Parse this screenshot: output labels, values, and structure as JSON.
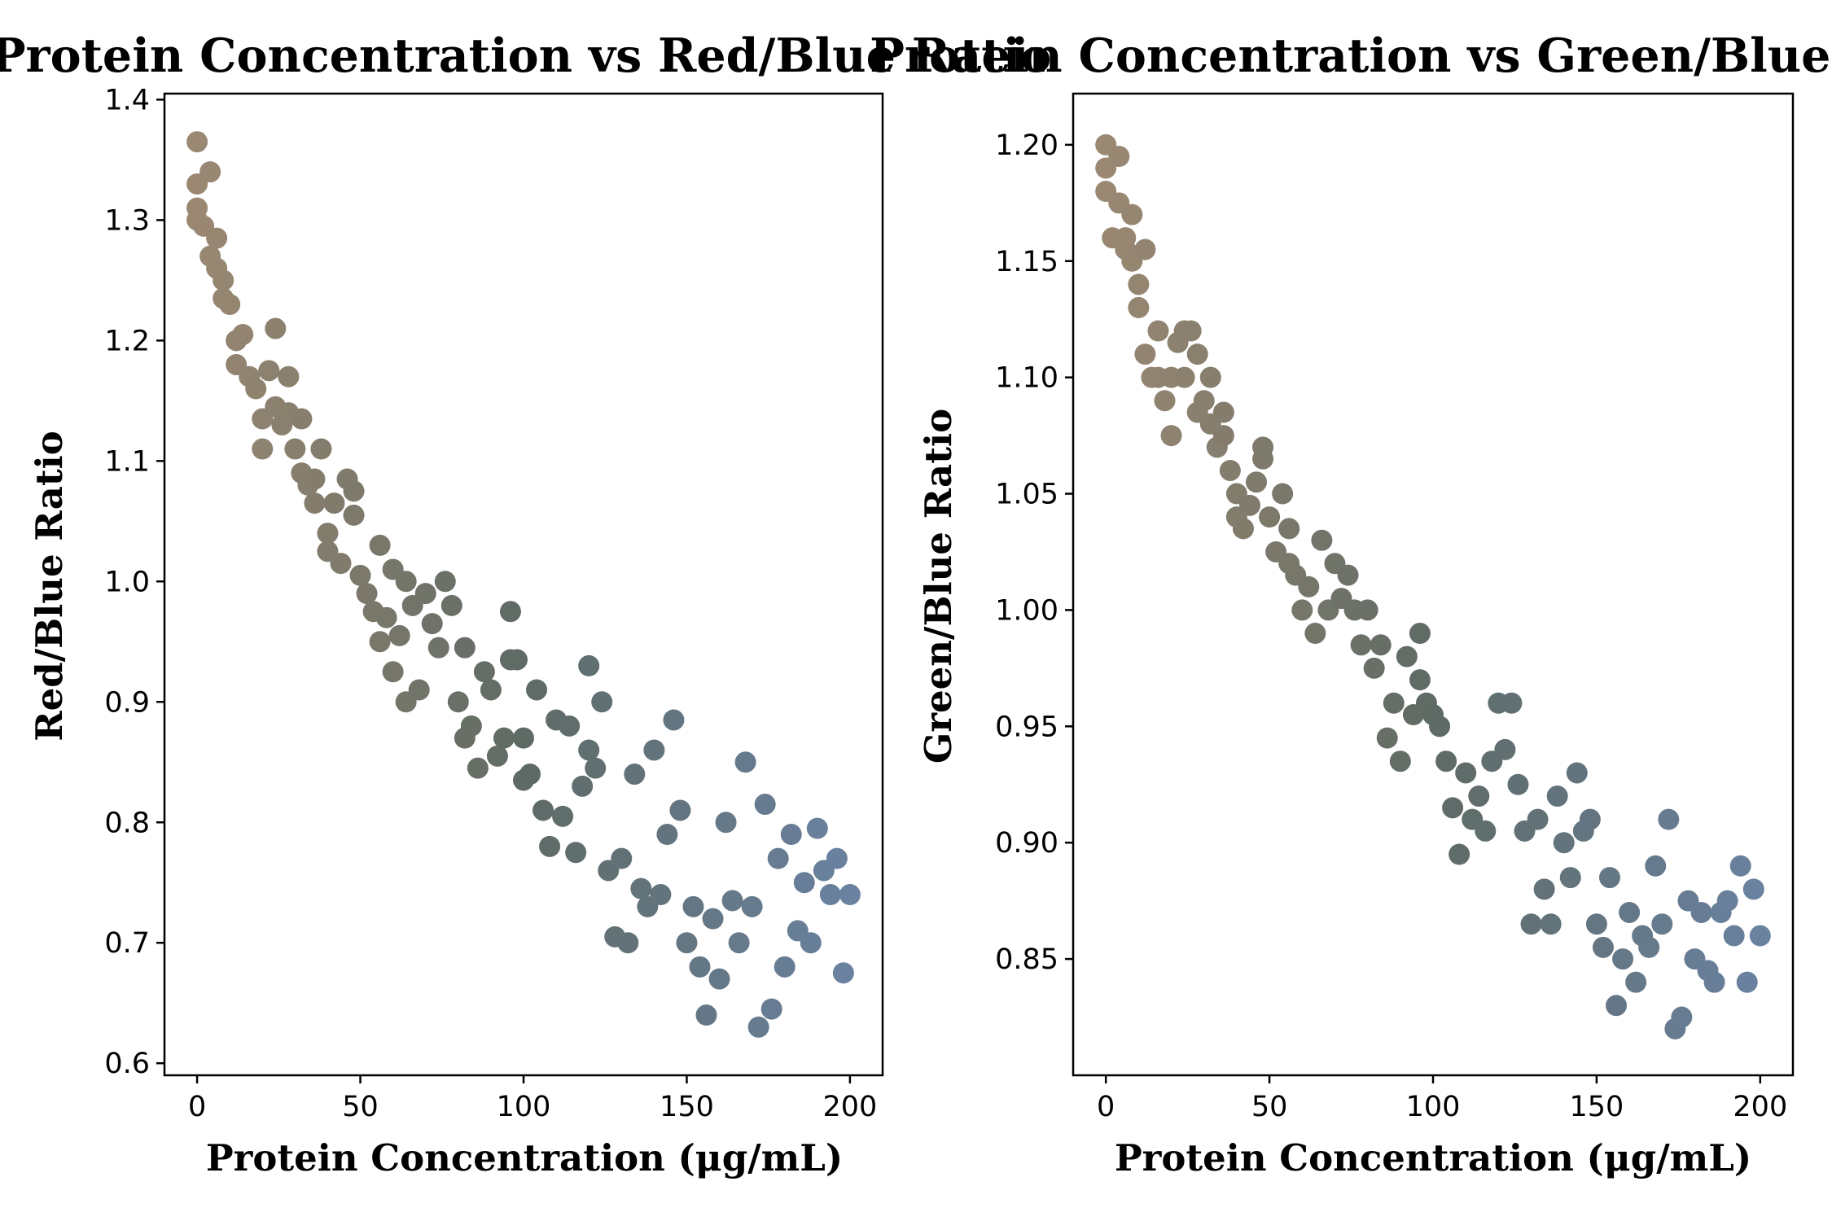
{
  "chart_data": [
    {
      "type": "scatter",
      "title": "Protein Concentration vs Red/Blue Ratio",
      "xlabel": "Protein Concentration (μg/mL)",
      "ylabel": "Red/Blue Ratio",
      "xlim": [
        -10,
        210
      ],
      "ylim": [
        0.59,
        1.405
      ],
      "xticks": [
        0,
        50,
        100,
        150,
        200
      ],
      "xtick_labels": [
        "0",
        "50",
        "100",
        "150",
        "200"
      ],
      "yticks": [
        0.6,
        0.7,
        0.8,
        0.9,
        1.0,
        1.1,
        1.2,
        1.3,
        1.4
      ],
      "ytick_labels": [
        "0.6",
        "0.7",
        "0.8",
        "0.9",
        "1.0",
        "1.1",
        "1.2",
        "1.3",
        "1.4"
      ],
      "grid": false,
      "marker_colors": {
        "low": "#a08b74",
        "mid": "#5e6a64",
        "high": "#6b84a6"
      },
      "series": [
        {
          "x": [
            0,
            0,
            0,
            0,
            2,
            4,
            4,
            6,
            6,
            8,
            8,
            10,
            12,
            12,
            14,
            16,
            18,
            20,
            20,
            22,
            24,
            24,
            26,
            28,
            28,
            30,
            32,
            32,
            34,
            36,
            36,
            38,
            40,
            40,
            42,
            44,
            46,
            48,
            48,
            50,
            52,
            54,
            56,
            56,
            58,
            60,
            60,
            62,
            64,
            64,
            66,
            68,
            70,
            72,
            74,
            76,
            78,
            80,
            82,
            82,
            84,
            86,
            88,
            90,
            92,
            94,
            96,
            96,
            98,
            100,
            100,
            102,
            104,
            106,
            108,
            110,
            112,
            114,
            116,
            118,
            120,
            120,
            122,
            124,
            126,
            128,
            130,
            132,
            134,
            136,
            138,
            140,
            142,
            144,
            146,
            148,
            150,
            152,
            154,
            156,
            158,
            160,
            162,
            164,
            166,
            168,
            170,
            172,
            174,
            176,
            178,
            180,
            182,
            184,
            186,
            188,
            190,
            192,
            194,
            196,
            198,
            200
          ],
          "y": [
            1.365,
            1.33,
            1.31,
            1.3,
            1.295,
            1.34,
            1.27,
            1.26,
            1.285,
            1.25,
            1.235,
            1.23,
            1.2,
            1.18,
            1.205,
            1.17,
            1.16,
            1.135,
            1.11,
            1.175,
            1.21,
            1.145,
            1.13,
            1.17,
            1.14,
            1.11,
            1.135,
            1.09,
            1.08,
            1.085,
            1.065,
            1.11,
            1.04,
            1.025,
            1.065,
            1.015,
            1.085,
            1.075,
            1.055,
            1.005,
            0.99,
            0.975,
            1.03,
            0.95,
            0.97,
            1.01,
            0.925,
            0.955,
            0.9,
            1.0,
            0.98,
            0.91,
            0.99,
            0.965,
            0.945,
            1.0,
            0.98,
            0.9,
            0.87,
            0.945,
            0.88,
            0.845,
            0.925,
            0.91,
            0.855,
            0.87,
            0.975,
            0.935,
            0.935,
            0.835,
            0.87,
            0.84,
            0.91,
            0.81,
            0.78,
            0.885,
            0.805,
            0.88,
            0.775,
            0.83,
            0.93,
            0.86,
            0.845,
            0.9,
            0.76,
            0.705,
            0.77,
            0.7,
            0.84,
            0.745,
            0.73,
            0.86,
            0.74,
            0.79,
            0.885,
            0.81,
            0.7,
            0.73,
            0.68,
            0.64,
            0.72,
            0.67,
            0.8,
            0.735,
            0.7,
            0.85,
            0.73,
            0.63,
            0.815,
            0.645,
            0.77,
            0.68,
            0.79,
            0.71,
            0.75,
            0.7,
            0.795,
            0.76,
            0.74,
            0.77,
            0.675,
            0.74
          ]
        }
      ]
    },
    {
      "type": "scatter",
      "title": "Protein Concentration vs Green/Blue Ratio",
      "xlabel": "Protein Concentration (μg/mL)",
      "ylabel": "Green/Blue Ratio",
      "xlim": [
        -10,
        210
      ],
      "ylim": [
        0.8,
        1.222
      ],
      "xticks": [
        0,
        50,
        100,
        150,
        200
      ],
      "xtick_labels": [
        "0",
        "50",
        "100",
        "150",
        "200"
      ],
      "yticks": [
        0.85,
        0.9,
        0.95,
        1.0,
        1.05,
        1.1,
        1.15,
        1.2
      ],
      "ytick_labels": [
        "0.85",
        "0.90",
        "0.95",
        "1.00",
        "1.05",
        "1.10",
        "1.15",
        "1.20"
      ],
      "grid": false,
      "marker_colors": {
        "low": "#a08b74",
        "mid": "#5e6a64",
        "high": "#6b84a6"
      },
      "series": [
        {
          "x": [
            0,
            0,
            0,
            2,
            4,
            4,
            6,
            6,
            8,
            8,
            10,
            10,
            12,
            12,
            14,
            16,
            16,
            18,
            20,
            20,
            22,
            24,
            24,
            26,
            28,
            28,
            30,
            32,
            32,
            34,
            36,
            36,
            38,
            40,
            40,
            42,
            44,
            46,
            48,
            48,
            50,
            52,
            54,
            56,
            56,
            58,
            60,
            62,
            64,
            66,
            68,
            70,
            72,
            74,
            76,
            78,
            80,
            82,
            84,
            86,
            88,
            90,
            92,
            94,
            96,
            96,
            98,
            100,
            102,
            104,
            106,
            108,
            110,
            112,
            114,
            116,
            118,
            120,
            122,
            124,
            126,
            128,
            130,
            132,
            134,
            136,
            138,
            140,
            142,
            144,
            146,
            148,
            150,
            152,
            154,
            156,
            158,
            160,
            162,
            164,
            166,
            168,
            170,
            172,
            174,
            176,
            178,
            180,
            182,
            184,
            186,
            188,
            190,
            192,
            194,
            196,
            198,
            200
          ],
          "y": [
            1.2,
            1.19,
            1.18,
            1.16,
            1.195,
            1.175,
            1.155,
            1.16,
            1.17,
            1.15,
            1.13,
            1.14,
            1.11,
            1.155,
            1.1,
            1.12,
            1.1,
            1.09,
            1.075,
            1.1,
            1.115,
            1.1,
            1.12,
            1.12,
            1.085,
            1.11,
            1.09,
            1.1,
            1.08,
            1.07,
            1.085,
            1.075,
            1.06,
            1.05,
            1.04,
            1.035,
            1.045,
            1.055,
            1.07,
            1.065,
            1.04,
            1.025,
            1.05,
            1.035,
            1.02,
            1.015,
            1.0,
            1.01,
            0.99,
            1.03,
            1.0,
            1.02,
            1.005,
            1.015,
            1.0,
            0.985,
            1.0,
            0.975,
            0.985,
            0.945,
            0.96,
            0.935,
            0.98,
            0.955,
            0.99,
            0.97,
            0.96,
            0.955,
            0.95,
            0.935,
            0.915,
            0.895,
            0.93,
            0.91,
            0.92,
            0.905,
            0.935,
            0.96,
            0.94,
            0.96,
            0.925,
            0.905,
            0.865,
            0.91,
            0.88,
            0.865,
            0.92,
            0.9,
            0.885,
            0.93,
            0.905,
            0.91,
            0.865,
            0.855,
            0.885,
            0.83,
            0.85,
            0.87,
            0.84,
            0.86,
            0.855,
            0.89,
            0.865,
            0.91,
            0.82,
            0.825,
            0.875,
            0.85,
            0.87,
            0.845,
            0.84,
            0.87,
            0.875,
            0.86,
            0.89,
            0.84,
            0.88,
            0.86
          ]
        }
      ]
    }
  ]
}
